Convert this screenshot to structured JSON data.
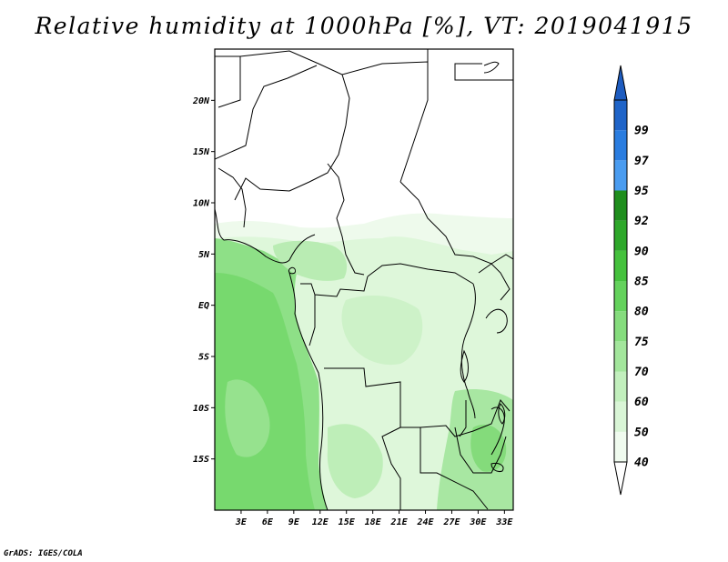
{
  "title": "Relative humidity at 1000hPa [%], VT: 2019041915",
  "credit": "GrADS: IGES/COLA",
  "map": {
    "lon_range": [
      0,
      34
    ],
    "lat_range": [
      -20,
      25
    ],
    "lat_ticks": [
      {
        "value": 20,
        "label": "20N"
      },
      {
        "value": 15,
        "label": "15N"
      },
      {
        "value": 10,
        "label": "10N"
      },
      {
        "value": 5,
        "label": "5N"
      },
      {
        "value": 0,
        "label": "EQ"
      },
      {
        "value": -5,
        "label": "5S"
      },
      {
        "value": -10,
        "label": "10S"
      },
      {
        "value": -15,
        "label": "15S"
      }
    ],
    "lon_ticks": [
      {
        "value": 3,
        "label": "3E"
      },
      {
        "value": 6,
        "label": "6E"
      },
      {
        "value": 9,
        "label": "9E"
      },
      {
        "value": 12,
        "label": "12E"
      },
      {
        "value": 15,
        "label": "15E"
      },
      {
        "value": 18,
        "label": "18E"
      },
      {
        "value": 21,
        "label": "21E"
      },
      {
        "value": 24,
        "label": "24E"
      },
      {
        "value": 27,
        "label": "27E"
      },
      {
        "value": 30,
        "label": "30E"
      },
      {
        "value": 33,
        "label": "33E"
      }
    ]
  },
  "colorbar": {
    "levels": [
      {
        "label": "40",
        "color": "#f0fbef"
      },
      {
        "label": "50",
        "color": "#d9f5d6"
      },
      {
        "label": "60",
        "color": "#c2efbd"
      },
      {
        "label": "70",
        "color": "#a3e69c"
      },
      {
        "label": "75",
        "color": "#85dc7d"
      },
      {
        "label": "80",
        "color": "#64d25c"
      },
      {
        "label": "85",
        "color": "#45c13d"
      },
      {
        "label": "90",
        "color": "#2ea82a"
      },
      {
        "label": "92",
        "color": "#1f8e1d"
      },
      {
        "label": "95",
        "color": "#4a9cf0"
      },
      {
        "label": "97",
        "color": "#2a7de0"
      },
      {
        "label": "99",
        "color": "#1f64c8"
      }
    ],
    "below_color": "#ffffff",
    "above_color": "#1d5cc0"
  },
  "colors": {
    "land_dry": "#ffffff",
    "border": "#000000"
  }
}
